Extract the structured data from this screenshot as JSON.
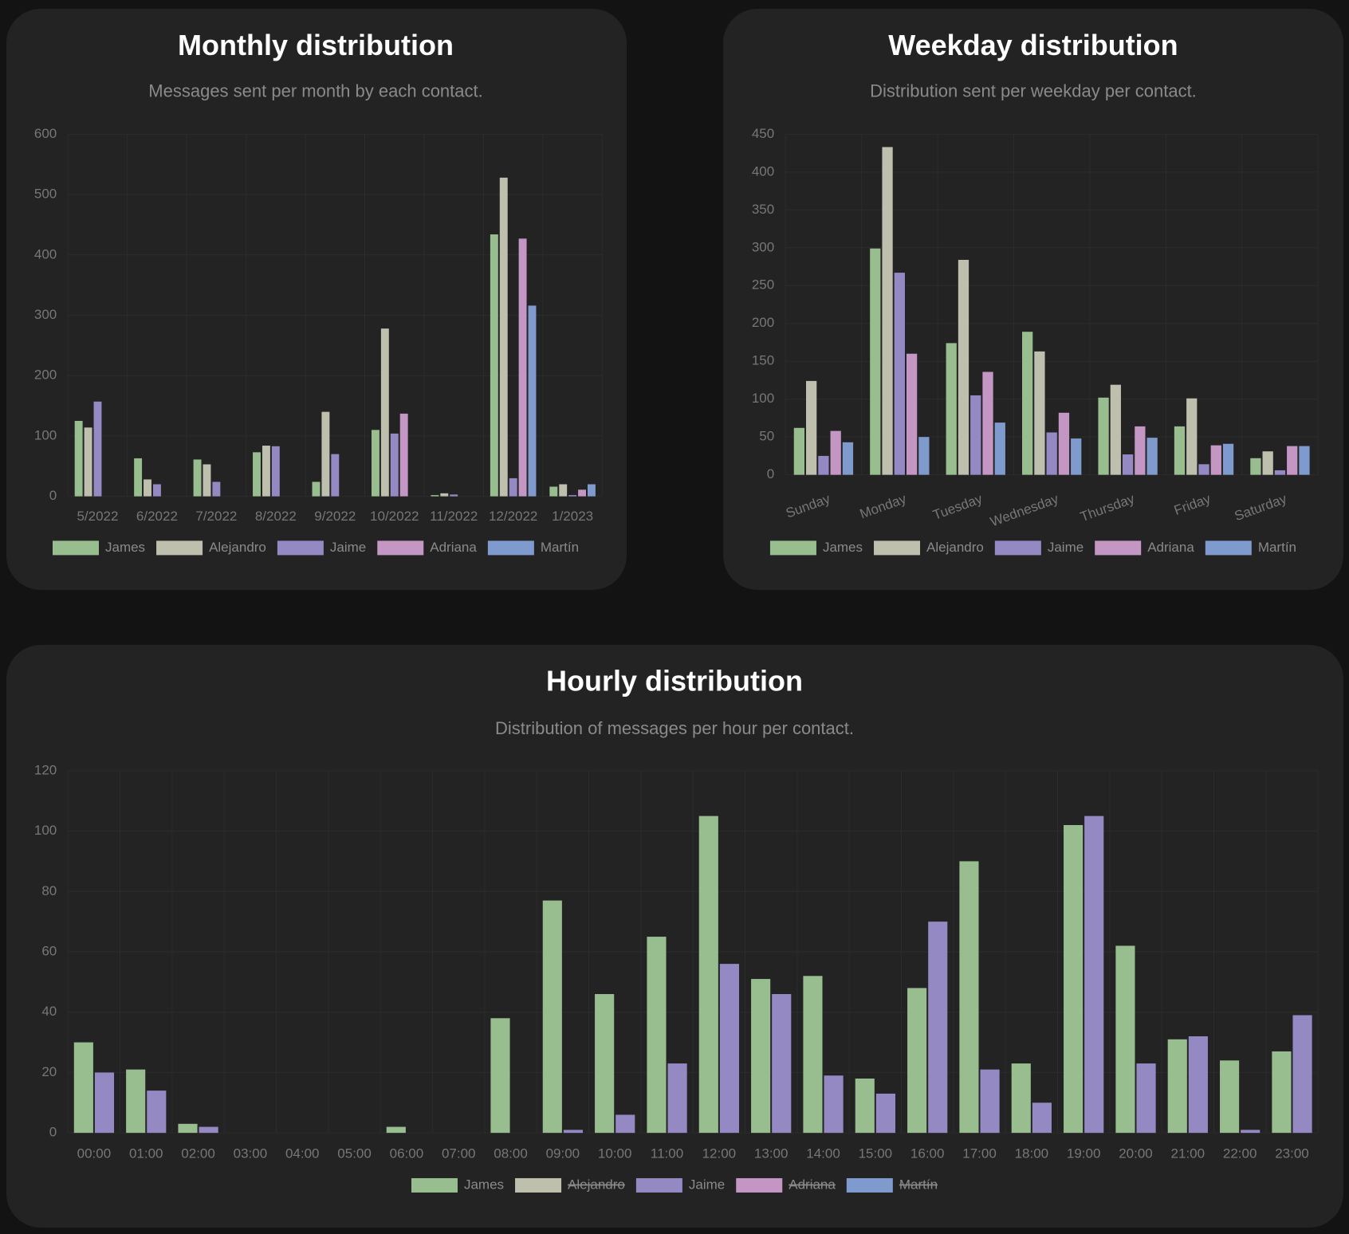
{
  "chart_data": [
    {
      "type": "bar",
      "title": "Monthly distribution",
      "subtitle": "Messages sent per month by each contact.",
      "categories": [
        "5/2022",
        "6/2022",
        "7/2022",
        "8/2022",
        "9/2022",
        "10/2022",
        "11/2022",
        "12/2022",
        "1/2023"
      ],
      "series": [
        {
          "name": "James",
          "color": "#98bd8e",
          "values": [
            125,
            63,
            61,
            73,
            24,
            110,
            2,
            434,
            16
          ]
        },
        {
          "name": "Alejandro",
          "color": "#bfbfae",
          "values": [
            114,
            28,
            53,
            84,
            140,
            278,
            5,
            528,
            20
          ]
        },
        {
          "name": "Jaime",
          "color": "#9589c4",
          "values": [
            157,
            20,
            24,
            83,
            70,
            104,
            3,
            30,
            2
          ]
        },
        {
          "name": "Adriana",
          "color": "#c496c4",
          "values": [
            0,
            0,
            0,
            0,
            0,
            137,
            0,
            427,
            11
          ]
        },
        {
          "name": "Martín",
          "color": "#7f9acc",
          "values": [
            0,
            0,
            0,
            0,
            0,
            0,
            0,
            316,
            20
          ]
        }
      ],
      "ylim": [
        0,
        600
      ],
      "yticks": [
        0,
        100,
        200,
        300,
        400,
        500,
        600
      ],
      "grid": true
    },
    {
      "type": "bar",
      "title": "Weekday distribution",
      "subtitle": "Distribution sent per weekday per contact.",
      "categories": [
        "Sunday",
        "Monday",
        "Tuesday",
        "Wednesday",
        "Thursday",
        "Friday",
        "Saturday"
      ],
      "series": [
        {
          "name": "James",
          "color": "#98bd8e",
          "values": [
            62,
            299,
            174,
            189,
            102,
            64,
            22
          ]
        },
        {
          "name": "Alejandro",
          "color": "#bfbfae",
          "values": [
            124,
            433,
            284,
            163,
            119,
            101,
            31
          ]
        },
        {
          "name": "Jaime",
          "color": "#9589c4",
          "values": [
            25,
            267,
            105,
            56,
            27,
            14,
            6
          ]
        },
        {
          "name": "Adriana",
          "color": "#c496c4",
          "values": [
            58,
            160,
            136,
            82,
            64,
            39,
            38
          ]
        },
        {
          "name": "Martín",
          "color": "#7f9acc",
          "values": [
            43,
            50,
            69,
            48,
            49,
            41,
            38
          ]
        }
      ],
      "ylim": [
        0,
        450
      ],
      "yticks": [
        0,
        50,
        100,
        150,
        200,
        250,
        300,
        350,
        400,
        450
      ],
      "grid": true,
      "rotate_labels": true
    },
    {
      "type": "bar",
      "title": "Hourly distribution",
      "subtitle": "Distribution of messages per hour per contact.",
      "categories": [
        "00:00",
        "01:00",
        "02:00",
        "03:00",
        "04:00",
        "05:00",
        "06:00",
        "07:00",
        "08:00",
        "09:00",
        "10:00",
        "11:00",
        "12:00",
        "13:00",
        "14:00",
        "15:00",
        "16:00",
        "17:00",
        "18:00",
        "19:00",
        "20:00",
        "21:00",
        "22:00",
        "23:00"
      ],
      "series": [
        {
          "name": "James",
          "color": "#98bd8e",
          "values": [
            30,
            21,
            3,
            0,
            0,
            0,
            2,
            0,
            38,
            77,
            46,
            65,
            105,
            51,
            52,
            18,
            48,
            90,
            23,
            102,
            62,
            31,
            24,
            27
          ]
        },
        {
          "name": "Alejandro",
          "color": "#bfbfae",
          "hidden": true
        },
        {
          "name": "Jaime",
          "color": "#9589c4",
          "values": [
            20,
            14,
            2,
            0,
            0,
            0,
            0,
            0,
            0,
            1,
            6,
            23,
            56,
            46,
            19,
            13,
            70,
            21,
            10,
            105,
            23,
            32,
            1,
            39
          ]
        },
        {
          "name": "Adriana",
          "color": "#c496c4",
          "hidden": true
        },
        {
          "name": "Martín",
          "color": "#7f9acc",
          "hidden": true
        }
      ],
      "ylim": [
        0,
        120
      ],
      "yticks": [
        0,
        20,
        40,
        60,
        80,
        100,
        120
      ],
      "grid": true
    }
  ]
}
